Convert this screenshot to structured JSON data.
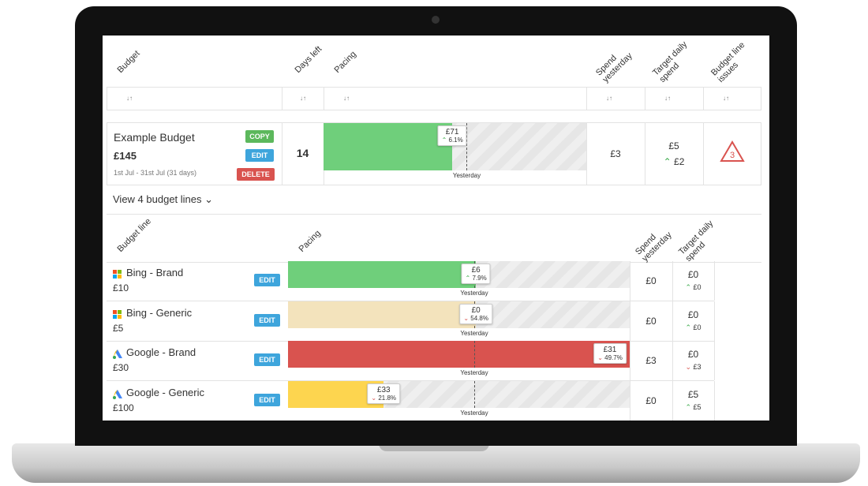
{
  "header": {
    "columns": [
      "Budget",
      "Days left",
      "Pacing",
      "Spend yesterday",
      "Target daily spend",
      "Budget line issues"
    ]
  },
  "budget": {
    "name": "Example Budget",
    "amount": "£145",
    "dates": "1st Jul - 31st Jul (31 days)",
    "buttons": [
      "COPY",
      "EDIT",
      "DELETE"
    ],
    "days_left": "14",
    "pacing": {
      "amount": "£71",
      "change": "6.1%",
      "trend": "up",
      "fill": 0.49,
      "color": "#6fcf7b",
      "marker": "Yesterday"
    },
    "spend_yesterday": "£3",
    "target": "£5",
    "target_change": "£2",
    "target_trend": "up",
    "issues": "3"
  },
  "toggle": "View 4 budget lines",
  "lines_header": {
    "columns": [
      "Budget line",
      "Pacing",
      "Spend yesterday",
      "Target daily spend"
    ]
  },
  "lines": [
    {
      "name": "Bing - Brand",
      "amount": "£10",
      "button": "EDIT",
      "pacing": {
        "amount": "£6",
        "change": "7.9%",
        "trend": "up",
        "fill": 0.55,
        "color": "#6fcf7b",
        "marker": "Yesterday"
      },
      "spend": "£0",
      "target": "£0",
      "target_change": "£0",
      "target_trend": "up"
    },
    {
      "name": "Bing - Generic",
      "amount": "£5",
      "button": "EDIT",
      "pacing": {
        "amount": "£0",
        "change": "54.8%",
        "trend": "down",
        "fill": 0.55,
        "color": "#f3e3bc",
        "marker": "Yesterday"
      },
      "spend": "£0",
      "target": "£0",
      "target_change": "£0",
      "target_trend": "up"
    },
    {
      "name": "Google - Brand",
      "amount": "£30",
      "button": "EDIT",
      "pacing": {
        "amount": "£31",
        "change": "49.7%",
        "trend": "down",
        "fill": 1.0,
        "color": "#d9534f",
        "marker": "Yesterday"
      },
      "spend": "£3",
      "target": "£0",
      "target_change": "£3",
      "target_trend": "down"
    },
    {
      "name": "Google - Generic",
      "amount": "£100",
      "button": "EDIT",
      "pacing": {
        "amount": "£33",
        "change": "21.8%",
        "trend": "down",
        "fill": 0.28,
        "color": "#fdd54f",
        "marker": "Yesterday"
      },
      "spend": "£0",
      "target": "£5",
      "target_change": "£5",
      "target_trend": "up"
    }
  ]
}
